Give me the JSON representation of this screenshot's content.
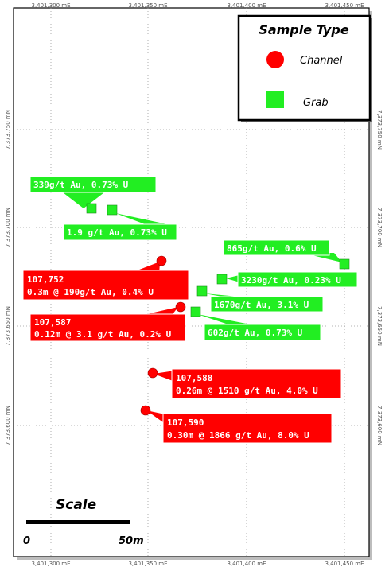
{
  "map": {
    "easting_labels": [
      "3,401,300 mE",
      "3,401,350 mE",
      "3,401,400 mE",
      "3,401,450 mE"
    ],
    "northing_labels": [
      "7,373,750 mN",
      "7,373,700 mN",
      "7,373,650 mN",
      "7,373,600 mN"
    ]
  },
  "legend": {
    "title": "Sample Type",
    "items": [
      {
        "label": "Channel",
        "symbol": "circle",
        "color": "#ff0000"
      },
      {
        "label": "Grab",
        "symbol": "square",
        "color": "#22ee22"
      }
    ]
  },
  "samples": {
    "grab": [
      {
        "lines": [
          "339g/t Au, 0.73% U"
        ]
      },
      {
        "lines": [
          "1.9 g/t Au, 0.73% U"
        ]
      },
      {
        "lines": [
          "865g/t Au, 0.6% U"
        ]
      },
      {
        "lines": [
          "3230g/t Au, 0.23% U"
        ]
      },
      {
        "lines": [
          "1670g/t Au, 3.1% U"
        ]
      },
      {
        "lines": [
          "602g/t Au, 0.73% U"
        ]
      }
    ],
    "channel": [
      {
        "lines": [
          "107,752",
          "0.3m @ 190g/t Au, 0.4% U"
        ]
      },
      {
        "lines": [
          "107,587",
          "0.12m @ 3.1 g/t Au, 0.2% U"
        ]
      },
      {
        "lines": [
          "107,588",
          "0.26m @ 1510 g/t Au, 4.0% U"
        ]
      },
      {
        "lines": [
          "107,590",
          "0.30m @ 1866 g/t Au, 8.0% U"
        ]
      }
    ]
  },
  "scale": {
    "title": "Scale",
    "start_label": "0",
    "end_label": "50m"
  },
  "colors": {
    "channel": "#ff0000",
    "grab": "#22ee22",
    "grid": "#9a9a9a"
  }
}
